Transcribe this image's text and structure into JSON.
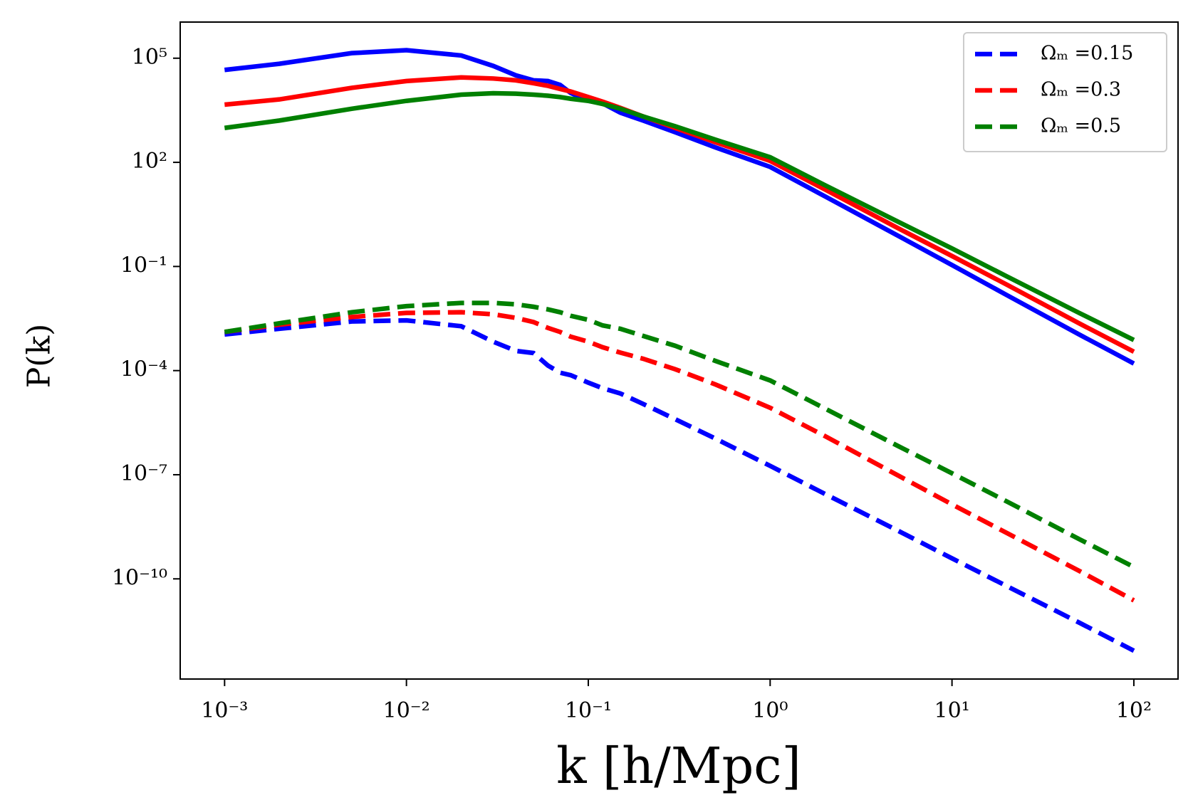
{
  "chart_data": {
    "type": "line",
    "x_label": "k [h/Mpc]",
    "y_label": "P(k)",
    "xscale": "log",
    "yscale": "log",
    "xlim": [
      0.00057,
      175
    ],
    "ylim": [
      1.3e-13,
      1100000.0
    ],
    "xticks": [
      {
        "value": 0.001,
        "label": "10⁻³"
      },
      {
        "value": 0.01,
        "label": "10⁻²"
      },
      {
        "value": 0.1,
        "label": "10⁻¹"
      },
      {
        "value": 1,
        "label": "10⁰"
      },
      {
        "value": 10,
        "label": "10¹"
      },
      {
        "value": 100,
        "label": "10²"
      }
    ],
    "yticks": [
      {
        "value": 100000,
        "label": "10⁵"
      },
      {
        "value": 100,
        "label": "10²"
      },
      {
        "value": 0.1,
        "label": "10⁻¹"
      },
      {
        "value": 0.0001,
        "label": "10⁻⁴"
      },
      {
        "value": 1e-07,
        "label": "10⁻⁷"
      },
      {
        "value": 1e-10,
        "label": "10⁻¹⁰"
      }
    ],
    "grid": false,
    "legend": "upper right",
    "x": [
      0.001,
      0.002,
      0.005,
      0.01,
      0.02,
      0.03,
      0.04,
      0.05,
      0.06,
      0.07,
      0.08,
      0.1,
      0.12,
      0.15,
      0.2,
      0.3,
      0.5,
      1,
      2,
      5,
      10,
      20,
      50,
      100
    ],
    "series": [
      {
        "name": "Ωₘ =0.15",
        "color": "#0000ff",
        "linestyle": "dashed",
        "values": [
          0.0011,
          0.0016,
          0.0026,
          0.0028,
          0.0019,
          0.00068,
          0.00037,
          0.00032,
          0.00014,
          8.7e-05,
          7.4e-05,
          4.5e-05,
          3.1e-05,
          2.2e-05,
          1.1e-05,
          4e-06,
          1.1e-06,
          1.8e-07,
          2.8e-08,
          2.5e-09,
          3.9e-10,
          6.2e-11,
          5.5e-12,
          8.5e-13
        ]
      },
      {
        "name": "Ωₘ =0.3",
        "color": "#ff0000",
        "linestyle": "dashed",
        "values": [
          0.0013,
          0.0021,
          0.0035,
          0.0046,
          0.0048,
          0.0042,
          0.0033,
          0.0025,
          0.0017,
          0.0013,
          0.00095,
          0.00068,
          0.00047,
          0.00033,
          0.00022,
          0.00011,
          4e-05,
          8.5e-06,
          1.3e-06,
          9.8e-08,
          1.4e-08,
          2.1e-09,
          1.7e-10,
          2.4e-11
        ]
      },
      {
        "name": "Ωₘ =0.5",
        "color": "#008000",
        "linestyle": "dashed",
        "values": [
          0.0013,
          0.0023,
          0.0048,
          0.0072,
          0.0089,
          0.0089,
          0.0081,
          0.0069,
          0.0058,
          0.0048,
          0.0038,
          0.0029,
          0.002,
          0.0016,
          0.001,
          0.00052,
          0.00019,
          5.2e-05,
          8.1e-06,
          6.9e-07,
          1.1e-07,
          1.7e-08,
          1.4e-09,
          2.2e-10
        ]
      },
      {
        "color": "#0000ff",
        "linestyle": "solid",
        "values": [
          46000.0,
          69000.0,
          140000.0,
          170000.0,
          120000.0,
          60000.0,
          32000.0,
          23000.0,
          22000.0,
          17000.0,
          10000.0,
          5900.0,
          5000.0,
          2700.0,
          1600.0,
          740,
          270,
          74,
          10.5,
          0.79,
          0.11,
          0.015,
          0.0011,
          0.00016
        ]
      },
      {
        "color": "#ff0000",
        "linestyle": "solid",
        "values": [
          4600.0,
          6500.0,
          14000.0,
          22000.0,
          28000.0,
          26000.0,
          23000.0,
          19000.0,
          16000.0,
          13000.0,
          11000.0,
          7600.0,
          5600.0,
          3700.0,
          2100.0,
          980,
          380,
          110,
          16.6,
          1.3,
          0.2,
          0.03,
          0.0023,
          0.00035
        ]
      },
      {
        "color": "#008000",
        "linestyle": "solid",
        "values": [
          980,
          1600.0,
          3500.0,
          5900.0,
          8900.0,
          9800.0,
          9500.0,
          8900.0,
          8300.0,
          7600.0,
          6800.0,
          5900.0,
          4800.0,
          3500.0,
          2100.0,
          1100.0,
          450,
          140,
          22,
          2.0,
          0.33,
          0.052,
          0.0046,
          0.00076
        ]
      }
    ]
  }
}
